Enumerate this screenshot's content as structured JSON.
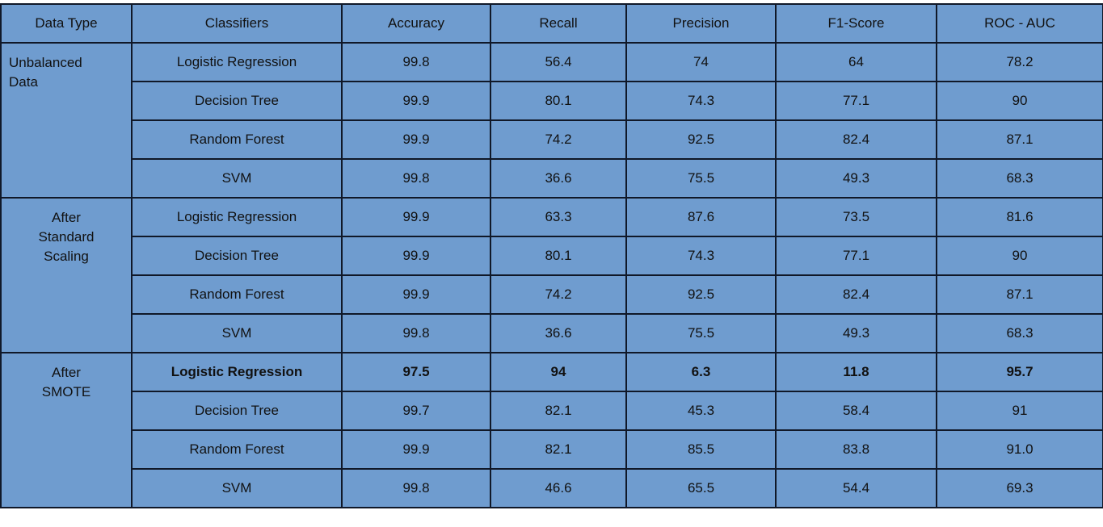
{
  "headers": [
    "Data Type",
    "Classifiers",
    "Accuracy",
    "Recall",
    "Precision",
    "F1-Score",
    "ROC - AUC"
  ],
  "groups": [
    {
      "label": [
        "Unbalanced",
        "Data"
      ],
      "rows": [
        {
          "classifier": "Logistic Regression",
          "accuracy": "99.8",
          "recall": "56.4",
          "precision": "74",
          "f1": "64",
          "roc_auc": "78.2"
        },
        {
          "classifier": "Decision Tree",
          "accuracy": "99.9",
          "recall": "80.1",
          "precision": "74.3",
          "f1": "77.1",
          "roc_auc": "90"
        },
        {
          "classifier": "Random Forest",
          "accuracy": "99.9",
          "recall": "74.2",
          "precision": "92.5",
          "f1": "82.4",
          "roc_auc": "87.1"
        },
        {
          "classifier": "SVM",
          "accuracy": "99.8",
          "recall": "36.6",
          "precision": "75.5",
          "f1": "49.3",
          "roc_auc": "68.3"
        }
      ]
    },
    {
      "label": [
        "After",
        "Standard",
        "Scaling"
      ],
      "rows": [
        {
          "classifier": "Logistic Regression",
          "accuracy": "99.9",
          "recall": "63.3",
          "precision": "87.6",
          "f1": "73.5",
          "roc_auc": "81.6"
        },
        {
          "classifier": "Decision Tree",
          "accuracy": "99.9",
          "recall": "80.1",
          "precision": "74.3",
          "f1": "77.1",
          "roc_auc": "90"
        },
        {
          "classifier": "Random Forest",
          "accuracy": "99.9",
          "recall": "74.2",
          "precision": "92.5",
          "f1": "82.4",
          "roc_auc": "87.1"
        },
        {
          "classifier": "SVM",
          "accuracy": "99.8",
          "recall": "36.6",
          "precision": "75.5",
          "f1": "49.3",
          "roc_auc": "68.3"
        }
      ]
    },
    {
      "label": [
        "After",
        "SMOTE"
      ],
      "rows": [
        {
          "classifier": "Logistic Regression",
          "accuracy": "97.5",
          "recall": "94",
          "precision": "6.3",
          "f1": "11.8",
          "roc_auc": "95.7"
        },
        {
          "classifier": "Decision Tree",
          "accuracy": "99.7",
          "recall": "82.1",
          "precision": "45.3",
          "f1": "58.4",
          "roc_auc": "91"
        },
        {
          "classifier": "Random Forest",
          "accuracy": "99.9",
          "recall": "82.1",
          "precision": "85.5",
          "f1": "83.8",
          "roc_auc": "91.0"
        },
        {
          "classifier": "SVM",
          "accuracy": "99.8",
          "recall": "46.6",
          "precision": "65.5",
          "f1": "54.4",
          "roc_auc": "69.3"
        }
      ]
    }
  ]
}
